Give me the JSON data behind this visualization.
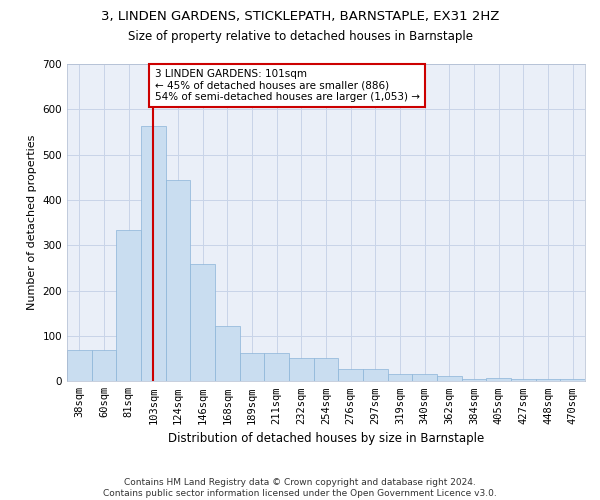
{
  "title1": "3, LINDEN GARDENS, STICKLEPATH, BARNSTAPLE, EX31 2HZ",
  "title2": "Size of property relative to detached houses in Barnstaple",
  "xlabel": "Distribution of detached houses by size in Barnstaple",
  "ylabel": "Number of detached properties",
  "bar_labels": [
    "38sqm",
    "60sqm",
    "81sqm",
    "103sqm",
    "124sqm",
    "146sqm",
    "168sqm",
    "189sqm",
    "211sqm",
    "232sqm",
    "254sqm",
    "276sqm",
    "297sqm",
    "319sqm",
    "340sqm",
    "362sqm",
    "384sqm",
    "405sqm",
    "427sqm",
    "448sqm",
    "470sqm"
  ],
  "bar_values": [
    70,
    70,
    333,
    563,
    443,
    258,
    122,
    63,
    63,
    52,
    52,
    28,
    28,
    16,
    16,
    12,
    5,
    8,
    5,
    5,
    5
  ],
  "bar_color": "#c9ddf0",
  "bar_edgecolor": "#8ab4d8",
  "vline_x": 3,
  "vline_color": "#cc0000",
  "annotation_text": "3 LINDEN GARDENS: 101sqm\n← 45% of detached houses are smaller (886)\n54% of semi-detached houses are larger (1,053) →",
  "annotation_box_color": "#cc0000",
  "ylim": [
    0,
    700
  ],
  "yticks": [
    0,
    100,
    200,
    300,
    400,
    500,
    600,
    700
  ],
  "grid_color": "#c8d4e8",
  "bg_color": "#eaeff8",
  "footer": "Contains HM Land Registry data © Crown copyright and database right 2024.\nContains public sector information licensed under the Open Government Licence v3.0.",
  "title1_fontsize": 9.5,
  "title2_fontsize": 8.5,
  "xlabel_fontsize": 8.5,
  "ylabel_fontsize": 8,
  "tick_fontsize": 7.5,
  "annotation_fontsize": 7.5,
  "footer_fontsize": 6.5
}
